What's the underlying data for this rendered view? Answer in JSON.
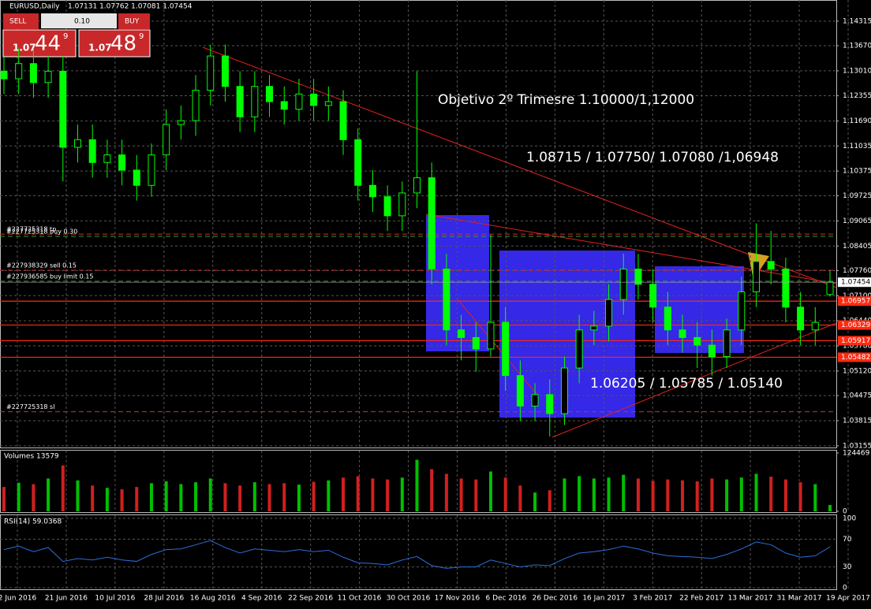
{
  "header": {
    "symbol": "EURUSD,Daily",
    "quote": "1.07131 1.07762 1.07081 1.07454"
  },
  "trade_panel": {
    "sell": "SELL",
    "buy": "BUY",
    "lot": "0.10",
    "sell_price": {
      "big": "1.07",
      "pips": "44",
      "fraction": "9"
    },
    "buy_price": {
      "big": "1.07",
      "pips": "48",
      "fraction": "9"
    }
  },
  "chart_data": [
    {
      "type": "candlestick",
      "dates": [
        "2 Jun 2016",
        "21 Jun 2016",
        "10 Jul 2016",
        "28 Jul 2016",
        "16 Aug 2016",
        "4 Sep 2016",
        "22 Sep 2016",
        "11 Oct 2016",
        "30 Oct 2016",
        "17 Nov 2016",
        "6 Dec 2016",
        "26 Dec 2016",
        "16 Jan 2017",
        "3 Feb 2017",
        "22 Feb 2017",
        "13 Mar 2017",
        "31 Mar 2017",
        "19 Apr 2017"
      ],
      "open": [
        1.13,
        1.128,
        1.132,
        1.127,
        1.13,
        1.11,
        1.112,
        1.106,
        1.108,
        1.104,
        1.1,
        1.108,
        1.116,
        1.117,
        1.125,
        1.134,
        1.126,
        1.118,
        1.126,
        1.122,
        1.12,
        1.124,
        1.121,
        1.122,
        1.112,
        1.1,
        1.097,
        1.092,
        1.098,
        1.102,
        1.078,
        1.062,
        1.06,
        1.057,
        1.064,
        1.05,
        1.042,
        1.045,
        1.04,
        1.052,
        1.062,
        1.063,
        1.07,
        1.078,
        1.074,
        1.068,
        1.062,
        1.06,
        1.058,
        1.055,
        1.062,
        1.072,
        1.08,
        1.078,
        1.068,
        1.062,
        1.07131
      ],
      "high": [
        1.134,
        1.136,
        1.136,
        1.134,
        1.134,
        1.116,
        1.116,
        1.112,
        1.112,
        1.108,
        1.111,
        1.12,
        1.121,
        1.129,
        1.137,
        1.137,
        1.13,
        1.13,
        1.129,
        1.126,
        1.128,
        1.128,
        1.126,
        1.125,
        1.115,
        1.104,
        1.1,
        1.101,
        1.13,
        1.106,
        1.082,
        1.066,
        1.064,
        1.087,
        1.068,
        1.054,
        1.048,
        1.049,
        1.055,
        1.066,
        1.067,
        1.074,
        1.082,
        1.082,
        1.078,
        1.072,
        1.066,
        1.064,
        1.062,
        1.065,
        1.076,
        1.09,
        1.088,
        1.081,
        1.072,
        1.068,
        1.07762
      ],
      "low": [
        1.124,
        1.124,
        1.123,
        1.123,
        1.101,
        1.106,
        1.102,
        1.102,
        1.1,
        1.096,
        1.097,
        1.104,
        1.112,
        1.113,
        1.121,
        1.122,
        1.114,
        1.114,
        1.118,
        1.116,
        1.117,
        1.117,
        1.117,
        1.108,
        1.096,
        1.093,
        1.088,
        1.088,
        1.094,
        1.074,
        1.058,
        1.054,
        1.051,
        1.055,
        1.046,
        1.038,
        1.038,
        1.034,
        1.037,
        1.048,
        1.058,
        1.059,
        1.066,
        1.07,
        1.064,
        1.058,
        1.056,
        1.052,
        1.05,
        1.052,
        1.058,
        1.068,
        1.074,
        1.064,
        1.058,
        1.058,
        1.07081
      ],
      "close": [
        1.128,
        1.132,
        1.127,
        1.13,
        1.11,
        1.112,
        1.106,
        1.108,
        1.104,
        1.1,
        1.108,
        1.116,
        1.117,
        1.125,
        1.134,
        1.126,
        1.118,
        1.126,
        1.122,
        1.12,
        1.124,
        1.121,
        1.122,
        1.112,
        1.1,
        1.097,
        1.092,
        1.098,
        1.102,
        1.078,
        1.062,
        1.06,
        1.057,
        1.064,
        1.05,
        1.042,
        1.045,
        1.04,
        1.052,
        1.062,
        1.063,
        1.07,
        1.078,
        1.074,
        1.068,
        1.062,
        1.06,
        1.058,
        1.055,
        1.062,
        1.072,
        1.08,
        1.078,
        1.068,
        1.062,
        1.064,
        1.07454
      ],
      "color": "#00ff00",
      "ylim": [
        1.0311,
        1.1483
      ],
      "yticks": [
        1.14315,
        {
          "value": 1.1367,
          "label": "1.13670"
        },
        {
          "value": 1.1301,
          "label": "1.13010"
        },
        1.12355,
        {
          "value": 1.1169,
          "label": "1.11690"
        },
        1.11035,
        1.10375,
        1.09725,
        1.09065,
        1.08405,
        {
          "value": 1.0776,
          "label": "1.07760"
        },
        {
          "value": 1.071,
          "label": "1.07100"
        },
        {
          "value": 1.0644,
          "label": "1.06440"
        },
        {
          "value": 1.0578,
          "label": "1.05780"
        },
        {
          "value": 1.0512,
          "label": "1.05120"
        },
        1.04475,
        1.03815,
        1.03155
      ],
      "grid": true,
      "current_price": 1.07454,
      "levels": [
        1.06957,
        1.06329,
        1.05917,
        1.05482
      ],
      "orders": [
        {
          "label": "#227725318 tp",
          "price": 1.0872,
          "color": "#d03030"
        },
        {
          "label": "#227725318 buy 0.30",
          "price": 1.0866,
          "color": "#30a030"
        },
        {
          "label": "#227938329 sell 0.15",
          "price": 1.0777,
          "color": "#d03030"
        },
        {
          "label": "#227936585 buy limit 0.15",
          "price": 1.0748,
          "color": "#30a030"
        },
        {
          "label": "#227725318 sl",
          "price": 1.0405,
          "color": "#d03030"
        }
      ],
      "annotations": [
        "Objetivo 2º Trimesre 1.10000/1,12000",
        "1.08715 / 1.07750/ 1.07080 /1,06948",
        "1.06205 /  1.05785 / 1.05140"
      ]
    },
    {
      "type": "bar",
      "title": "Volumes 13579",
      "values": [
        52000,
        61000,
        58000,
        70000,
        98000,
        66000,
        55000,
        50000,
        47000,
        52000,
        60000,
        64000,
        58000,
        62000,
        70000,
        60000,
        55000,
        62000,
        58000,
        60000,
        57000,
        63000,
        66000,
        72000,
        75000,
        70000,
        68000,
        72000,
        110000,
        90000,
        80000,
        70000,
        68000,
        85000,
        72000,
        55000,
        40000,
        45000,
        70000,
        75000,
        70000,
        72000,
        78000,
        70000,
        65000,
        68000,
        66000,
        64000,
        70000,
        68000,
        72000,
        80000,
        74000,
        68000,
        62000,
        58000,
        13579
      ],
      "ylim": [
        0,
        124469
      ],
      "yticks": [
        0,
        124469
      ]
    },
    {
      "type": "line",
      "title": "RSI(14) 59.0368",
      "color": "#2a6fdb",
      "values": [
        55,
        60,
        52,
        58,
        38,
        42,
        40,
        44,
        40,
        38,
        48,
        55,
        56,
        62,
        68,
        58,
        50,
        56,
        54,
        52,
        55,
        52,
        54,
        44,
        36,
        35,
        33,
        40,
        45,
        32,
        28,
        30,
        30,
        40,
        35,
        30,
        33,
        32,
        42,
        50,
        52,
        55,
        60,
        56,
        50,
        46,
        45,
        44,
        42,
        48,
        56,
        66,
        62,
        50,
        44,
        46,
        59.0368
      ],
      "ylim": [
        0,
        100
      ],
      "yticks": [
        0,
        30,
        70,
        100
      ]
    }
  ]
}
